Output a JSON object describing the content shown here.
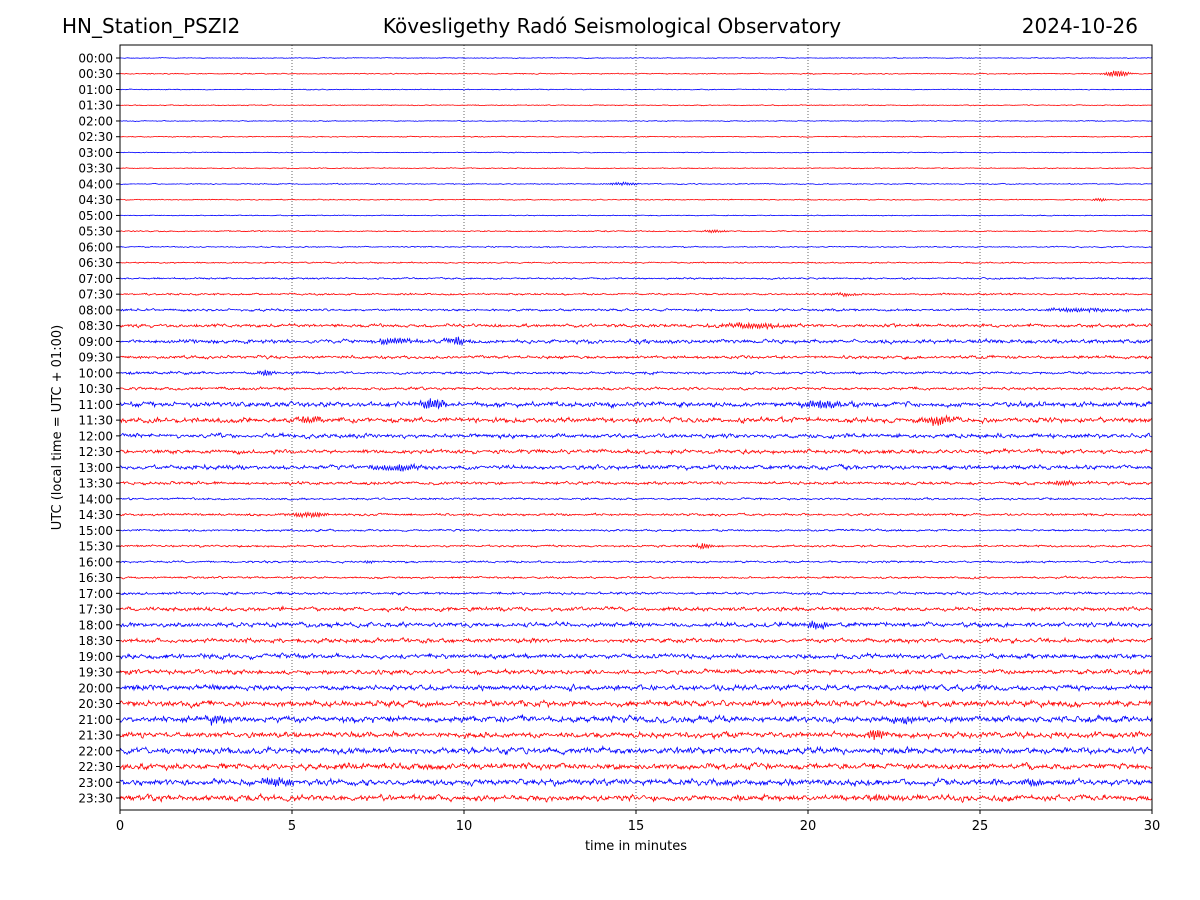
{
  "header": {
    "station": "HN_Station_PSZI2",
    "observatory": "Kövesligethy Radó Seismological Observatory",
    "date": "2024-10-26"
  },
  "chart_data": {
    "type": "line",
    "title": "Kövesligethy Radó Seismological Observatory",
    "xlabel": "time in minutes",
    "ylabel": "UTC (local time = UTC + 01:00)",
    "xlim": [
      0,
      30
    ],
    "x_ticks": [
      0,
      5,
      10,
      15,
      20,
      25,
      30
    ],
    "grid": "vertical dotted lines at 5-minute ticks",
    "series_colors": [
      "#0000ff",
      "#ff0000"
    ],
    "rows": [
      {
        "label": "00:00",
        "noise": 0.25,
        "events": []
      },
      {
        "label": "00:30",
        "noise": 0.3,
        "events": [
          {
            "t": 29.0,
            "amp": 3.5,
            "w": 0.5
          }
        ]
      },
      {
        "label": "01:00",
        "noise": 0.25,
        "events": []
      },
      {
        "label": "01:30",
        "noise": 0.28,
        "events": []
      },
      {
        "label": "02:00",
        "noise": 0.25,
        "events": []
      },
      {
        "label": "02:30",
        "noise": 0.28,
        "events": []
      },
      {
        "label": "03:00",
        "noise": 0.25,
        "events": []
      },
      {
        "label": "03:30",
        "noise": 0.28,
        "events": []
      },
      {
        "label": "04:00",
        "noise": 0.3,
        "events": [
          {
            "t": 14.6,
            "amp": 1.5,
            "w": 0.6
          }
        ]
      },
      {
        "label": "04:30",
        "noise": 0.3,
        "events": [
          {
            "t": 28.5,
            "amp": 1.5,
            "w": 0.3
          }
        ]
      },
      {
        "label": "05:00",
        "noise": 0.25,
        "events": []
      },
      {
        "label": "05:30",
        "noise": 0.35,
        "events": [
          {
            "t": 17.3,
            "amp": 1.5,
            "w": 0.5
          }
        ]
      },
      {
        "label": "06:00",
        "noise": 0.35,
        "events": []
      },
      {
        "label": "06:30",
        "noise": 0.4,
        "events": []
      },
      {
        "label": "07:00",
        "noise": 0.5,
        "events": []
      },
      {
        "label": "07:30",
        "noise": 0.55,
        "events": [
          {
            "t": 21.0,
            "amp": 1.5,
            "w": 0.6
          }
        ]
      },
      {
        "label": "08:00",
        "noise": 0.7,
        "events": [
          {
            "t": 28.0,
            "amp": 2.0,
            "w": 1.5
          }
        ]
      },
      {
        "label": "08:30",
        "noise": 1.0,
        "events": [
          {
            "t": 18.5,
            "amp": 2.5,
            "w": 1.5
          }
        ]
      },
      {
        "label": "09:00",
        "noise": 1.2,
        "events": [
          {
            "t": 8.0,
            "amp": 3.0,
            "w": 0.8
          },
          {
            "t": 9.8,
            "amp": 4.0,
            "w": 0.4
          }
        ]
      },
      {
        "label": "09:30",
        "noise": 0.9,
        "events": []
      },
      {
        "label": "10:00",
        "noise": 0.8,
        "events": [
          {
            "t": 4.2,
            "amp": 2.5,
            "w": 0.4
          }
        ]
      },
      {
        "label": "10:30",
        "noise": 0.8,
        "events": []
      },
      {
        "label": "11:00",
        "noise": 1.5,
        "events": [
          {
            "t": 9.1,
            "amp": 5.0,
            "w": 0.5
          },
          {
            "t": 20.5,
            "amp": 3.5,
            "w": 1.0
          }
        ]
      },
      {
        "label": "11:30",
        "noise": 1.5,
        "events": [
          {
            "t": 5.5,
            "amp": 3.0,
            "w": 0.6
          },
          {
            "t": 23.8,
            "amp": 5.0,
            "w": 0.5
          }
        ]
      },
      {
        "label": "12:00",
        "noise": 1.3,
        "events": []
      },
      {
        "label": "12:30",
        "noise": 1.2,
        "events": []
      },
      {
        "label": "13:00",
        "noise": 1.3,
        "events": [
          {
            "t": 8.2,
            "amp": 3.0,
            "w": 1.0
          }
        ]
      },
      {
        "label": "13:30",
        "noise": 0.9,
        "events": [
          {
            "t": 27.5,
            "amp": 2.5,
            "w": 0.6
          }
        ]
      },
      {
        "label": "14:00",
        "noise": 0.6,
        "events": []
      },
      {
        "label": "14:30",
        "noise": 0.7,
        "events": [
          {
            "t": 5.5,
            "amp": 2.5,
            "w": 0.8
          }
        ]
      },
      {
        "label": "15:00",
        "noise": 0.6,
        "events": []
      },
      {
        "label": "15:30",
        "noise": 0.6,
        "events": [
          {
            "t": 17.0,
            "amp": 3.0,
            "w": 0.35
          }
        ]
      },
      {
        "label": "16:00",
        "noise": 0.6,
        "events": [
          {
            "t": 7.2,
            "amp": 1.5,
            "w": 0.3
          }
        ]
      },
      {
        "label": "16:30",
        "noise": 0.6,
        "events": []
      },
      {
        "label": "17:00",
        "noise": 0.8,
        "events": []
      },
      {
        "label": "17:30",
        "noise": 1.2,
        "events": []
      },
      {
        "label": "18:00",
        "noise": 1.4,
        "events": [
          {
            "t": 20.3,
            "amp": 3.0,
            "w": 0.6
          }
        ]
      },
      {
        "label": "18:30",
        "noise": 1.3,
        "events": []
      },
      {
        "label": "19:00",
        "noise": 1.4,
        "events": []
      },
      {
        "label": "19:30",
        "noise": 1.4,
        "events": []
      },
      {
        "label": "20:00",
        "noise": 1.6,
        "events": []
      },
      {
        "label": "20:30",
        "noise": 1.8,
        "events": []
      },
      {
        "label": "21:00",
        "noise": 1.9,
        "events": [
          {
            "t": 2.8,
            "amp": 4.0,
            "w": 0.5
          },
          {
            "t": 22.8,
            "amp": 3.5,
            "w": 0.5
          }
        ]
      },
      {
        "label": "21:30",
        "noise": 1.8,
        "events": [
          {
            "t": 22.0,
            "amp": 4.0,
            "w": 0.5
          }
        ]
      },
      {
        "label": "22:00",
        "noise": 1.9,
        "events": []
      },
      {
        "label": "22:30",
        "noise": 1.8,
        "events": []
      },
      {
        "label": "23:00",
        "noise": 1.9,
        "events": [
          {
            "t": 4.5,
            "amp": 3.5,
            "w": 0.6
          },
          {
            "t": 26.5,
            "amp": 4.0,
            "w": 0.5
          }
        ]
      },
      {
        "label": "23:30",
        "noise": 1.8,
        "events": [
          {
            "t": 22.0,
            "amp": 3.0,
            "w": 0.6
          }
        ]
      }
    ]
  }
}
